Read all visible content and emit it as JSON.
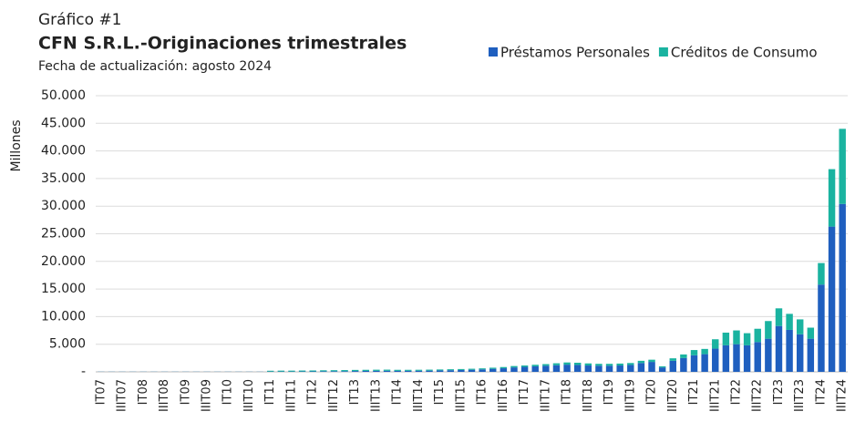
{
  "chart_data": {
    "type": "stacked_bar",
    "supertitle": "Gráfico #1",
    "title": "CFN S.R.L.-Originaciones trimestrales",
    "subtitle": "Fecha de actualización: agosto 2024",
    "y_label": "Millones",
    "legend": "top-right",
    "categories": [
      "IT07",
      null,
      "IIIT07",
      null,
      "IT08",
      null,
      "IIIT08",
      null,
      "IT09",
      null,
      "IIIT09",
      null,
      "IT10",
      null,
      "IIIT10",
      null,
      "IT11",
      null,
      "IIIT11",
      null,
      "IT12",
      null,
      "IIIT12",
      null,
      "IT13",
      null,
      "IIIT13",
      null,
      "IT14",
      null,
      "IIIT14",
      null,
      "IT15",
      null,
      "IIIT15",
      null,
      "IT16",
      null,
      "IIIT16",
      null,
      "IT17",
      null,
      "IIIT17",
      null,
      "IT18",
      null,
      "IIIT18",
      null,
      "IT19",
      null,
      "IIIT19",
      null,
      "IT20",
      null,
      "IIIT20",
      null,
      "IT21",
      null,
      "IIIT21",
      null,
      "IT22",
      null,
      "IIIT22",
      null,
      "IT23",
      null,
      "IIIT23",
      null,
      "IT24",
      null,
      "IIIT24"
    ],
    "series": [
      {
        "name": "Préstamos Personales",
        "color": "#1f5fbf",
        "values": [
          20,
          20,
          20,
          20,
          20,
          20,
          20,
          20,
          20,
          20,
          20,
          20,
          20,
          20,
          20,
          20,
          50,
          60,
          60,
          70,
          80,
          100,
          110,
          120,
          150,
          170,
          180,
          190,
          180,
          190,
          200,
          220,
          260,
          300,
          340,
          380,
          450,
          550,
          650,
          800,
          900,
          1000,
          1100,
          1200,
          1300,
          1250,
          1150,
          1100,
          1100,
          1150,
          1250,
          1600,
          1800,
          800,
          2000,
          2500,
          3000,
          3200,
          4200,
          4800,
          5000,
          4800,
          5400,
          6000,
          8300,
          7600,
          6800,
          6000,
          15800,
          26300,
          30400
        ]
      },
      {
        "name": "Créditos de Consumo",
        "color": "#1ab3a0",
        "values": [
          10,
          10,
          10,
          10,
          10,
          10,
          10,
          10,
          10,
          10,
          10,
          10,
          10,
          10,
          10,
          10,
          150,
          160,
          160,
          170,
          170,
          180,
          190,
          200,
          200,
          200,
          210,
          210,
          190,
          180,
          180,
          180,
          170,
          170,
          170,
          180,
          180,
          200,
          220,
          250,
          250,
          280,
          300,
          350,
          400,
          400,
          380,
          350,
          350,
          350,
          350,
          400,
          400,
          200,
          450,
          650,
          950,
          950,
          1700,
          2300,
          2500,
          2200,
          2400,
          3200,
          3200,
          2900,
          2700,
          2000,
          3900,
          10400,
          13600
        ]
      }
    ],
    "ylim": [
      0,
      50000
    ],
    "yticks": [
      {
        "value": 0,
        "label": "-"
      },
      {
        "value": 5000,
        "label": "5.000"
      },
      {
        "value": 10000,
        "label": "10.000"
      },
      {
        "value": 15000,
        "label": "15.000"
      },
      {
        "value": 20000,
        "label": "20.000"
      },
      {
        "value": 25000,
        "label": "25.000"
      },
      {
        "value": 30000,
        "label": "30.000"
      },
      {
        "value": 35000,
        "label": "35.000"
      },
      {
        "value": 40000,
        "label": "40.000"
      },
      {
        "value": 45000,
        "label": "45.000"
      },
      {
        "value": 50000,
        "label": "50.000"
      }
    ],
    "grid": true
  }
}
